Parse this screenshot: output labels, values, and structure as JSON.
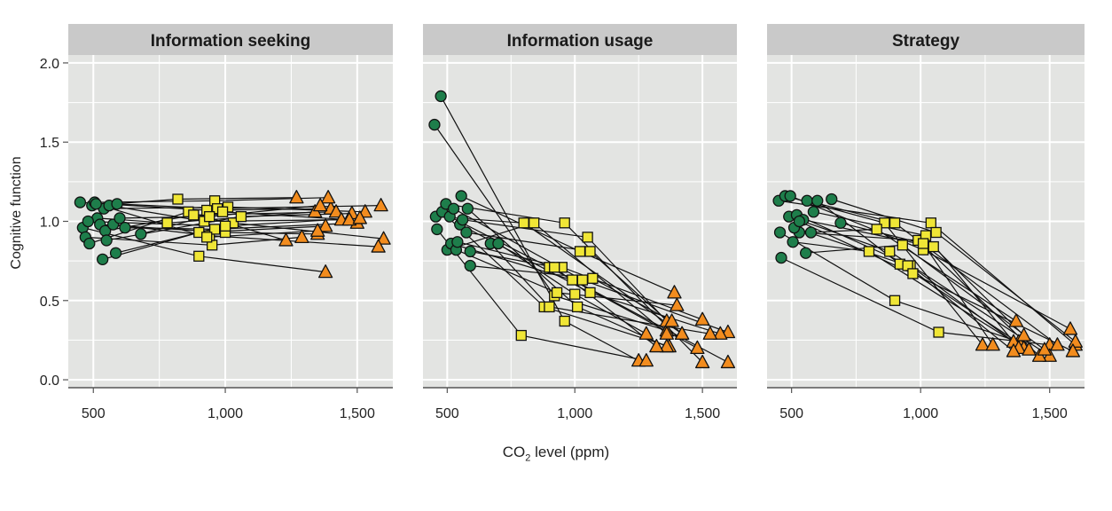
{
  "chart_data": {
    "type": "scatter",
    "ylabel": "Cognitive function",
    "xlabel_main": "CO",
    "xlabel_sub": "2",
    "xlabel_rest": " level (ppm)",
    "xlim": [
      405,
      1635
    ],
    "ylim": [
      -0.05,
      2.05
    ],
    "xticks": [
      500,
      1000,
      1500
    ],
    "xtick_labels": [
      "500",
      "1,000",
      "1,500"
    ],
    "yticks": [
      0.0,
      0.5,
      1.0,
      1.5,
      2.0
    ],
    "ytick_labels": [
      "0.0",
      "0.5",
      "1.0",
      "1.5",
      "2.0"
    ],
    "grid": true,
    "marker_colors": {
      "low": "#1e7e4b",
      "mid": "#f0e636",
      "high": "#f28c1e"
    },
    "panels": [
      {
        "title": "Information seeking",
        "participants": [
          [
            [
              450,
              1.12
            ],
            [
              930,
              1.07
            ],
            [
              1400,
              1.08
            ]
          ],
          [
            [
              460,
              0.96
            ],
            [
              900,
              0.78
            ],
            [
              1380,
              0.68
            ]
          ],
          [
            [
              470,
              0.9
            ],
            [
              950,
              0.85
            ],
            [
              1290,
              0.9
            ]
          ],
          [
            [
              485,
              0.86
            ],
            [
              860,
              1.06
            ],
            [
              1230,
              0.88
            ]
          ],
          [
            [
              495,
              1.1
            ],
            [
              820,
              1.14
            ],
            [
              1270,
              1.15
            ]
          ],
          [
            [
              505,
              1.12
            ],
            [
              960,
              1.13
            ],
            [
              1390,
              1.15
            ]
          ],
          [
            [
              515,
              1.02
            ],
            [
              780,
              0.99
            ],
            [
              1340,
              1.06
            ]
          ],
          [
            [
              525,
              0.98
            ],
            [
              1000,
              0.93
            ],
            [
              1350,
              0.92
            ]
          ],
          [
            [
              535,
              0.76
            ],
            [
              1030,
              0.99
            ],
            [
              1600,
              0.89
            ]
          ],
          [
            [
              540,
              1.08
            ],
            [
              1010,
              1.09
            ],
            [
              1530,
              1.06
            ]
          ],
          [
            [
              545,
              0.94
            ],
            [
              880,
              1.04
            ],
            [
              1420,
              1.06
            ]
          ],
          [
            [
              550,
              0.88
            ],
            [
              1060,
              1.03
            ],
            [
              1480,
              1.05
            ]
          ],
          [
            [
              560,
              1.1
            ],
            [
              920,
              1.0
            ],
            [
              1440,
              1.01
            ]
          ],
          [
            [
              575,
              0.98
            ],
            [
              940,
              0.91
            ],
            [
              1580,
              0.84
            ]
          ],
          [
            [
              585,
              0.8
            ],
            [
              900,
              0.93
            ],
            [
              1380,
              0.97
            ]
          ],
          [
            [
              590,
              1.11
            ],
            [
              970,
              1.08
            ],
            [
              1590,
              1.1
            ]
          ],
          [
            [
              600,
              1.02
            ],
            [
              940,
              1.03
            ],
            [
              1360,
              1.1
            ]
          ],
          [
            [
              620,
              0.96
            ],
            [
              960,
              0.95
            ],
            [
              1500,
              0.99
            ]
          ],
          [
            [
              680,
              0.92
            ],
            [
              990,
              1.06
            ],
            [
              1470,
              1.01
            ]
          ],
          [
            [
              510,
              1.11
            ],
            [
              930,
              0.9
            ],
            [
              1350,
              0.94
            ]
          ],
          [
            [
              480,
              1.0
            ],
            [
              1000,
              0.97
            ],
            [
              1510,
              1.02
            ]
          ]
        ]
      },
      {
        "title": "Information usage",
        "participants": [
          [
            [
              450,
              1.61
            ],
            [
              920,
              0.53
            ],
            [
              1360,
              0.31
            ]
          ],
          [
            [
              475,
              1.79
            ],
            [
              960,
              0.37
            ],
            [
              1250,
              0.12
            ]
          ],
          [
            [
              455,
              1.03
            ],
            [
              800,
              0.99
            ],
            [
              1420,
              0.29
            ]
          ],
          [
            [
              460,
              0.95
            ],
            [
              790,
              0.28
            ],
            [
              1280,
              0.12
            ]
          ],
          [
            [
              480,
              1.06
            ],
            [
              880,
              0.46
            ],
            [
              1370,
              0.21
            ]
          ],
          [
            [
              495,
              1.11
            ],
            [
              960,
              0.99
            ],
            [
              1500,
              0.11
            ]
          ],
          [
            [
              500,
              0.82
            ],
            [
              840,
              0.99
            ],
            [
              1360,
              0.29
            ]
          ],
          [
            [
              510,
              1.03
            ],
            [
              900,
              0.71
            ],
            [
              1600,
              0.11
            ]
          ],
          [
            [
              515,
              0.86
            ],
            [
              990,
              0.63
            ],
            [
              1480,
              0.2
            ]
          ],
          [
            [
              525,
              1.08
            ],
            [
              1030,
              0.63
            ],
            [
              1600,
              0.3
            ]
          ],
          [
            [
              535,
              0.82
            ],
            [
              930,
              0.55
            ],
            [
              1400,
              0.47
            ]
          ],
          [
            [
              540,
              0.87
            ],
            [
              950,
              0.71
            ],
            [
              1500,
              0.38
            ]
          ],
          [
            [
              550,
              0.98
            ],
            [
              1060,
              0.55
            ],
            [
              1570,
              0.29
            ]
          ],
          [
            [
              555,
              1.16
            ],
            [
              1020,
              0.81
            ],
            [
              1390,
              0.55
            ]
          ],
          [
            [
              560,
              1.01
            ],
            [
              1050,
              0.9
            ],
            [
              1360,
              0.37
            ]
          ],
          [
            [
              575,
              0.93
            ],
            [
              1060,
              0.81
            ],
            [
              1420,
              0.29
            ]
          ],
          [
            [
              580,
              1.08
            ],
            [
              1010,
              0.46
            ],
            [
              1360,
              0.21
            ]
          ],
          [
            [
              590,
              0.72
            ],
            [
              1070,
              0.64
            ],
            [
              1380,
              0.37
            ]
          ],
          [
            [
              670,
              0.86
            ],
            [
              900,
              0.46
            ],
            [
              1530,
              0.29
            ]
          ],
          [
            [
              700,
              0.86
            ],
            [
              1000,
              0.54
            ],
            [
              1280,
              0.29
            ]
          ],
          [
            [
              590,
              0.81
            ],
            [
              920,
              0.71
            ],
            [
              1320,
              0.21
            ]
          ]
        ]
      },
      {
        "title": "Strategy",
        "participants": [
          [
            [
              450,
              1.13
            ],
            [
              1040,
              0.99
            ],
            [
              1600,
              0.22
            ]
          ],
          [
            [
              455,
              0.93
            ],
            [
              900,
              0.5
            ],
            [
              1380,
              0.24
            ]
          ],
          [
            [
              460,
              0.77
            ],
            [
              1070,
              0.3
            ],
            [
              1500,
              0.22
            ]
          ],
          [
            [
              475,
              1.16
            ],
            [
              860,
              0.99
            ],
            [
              1240,
              0.22
            ]
          ],
          [
            [
              490,
              1.03
            ],
            [
              880,
              0.81
            ],
            [
              1500,
              0.15
            ]
          ],
          [
            [
              495,
              1.16
            ],
            [
              1010,
              0.82
            ],
            [
              1580,
              0.32
            ]
          ],
          [
            [
              505,
              0.87
            ],
            [
              800,
              0.81
            ],
            [
              1400,
              0.2
            ]
          ],
          [
            [
              520,
              1.04
            ],
            [
              960,
              0.72
            ],
            [
              1360,
              0.24
            ]
          ],
          [
            [
              530,
              0.93
            ],
            [
              990,
              0.88
            ],
            [
              1460,
              0.15
            ]
          ],
          [
            [
              545,
              1.01
            ],
            [
              1050,
              0.84
            ],
            [
              1400,
              0.28
            ]
          ],
          [
            [
              555,
              0.8
            ],
            [
              930,
              0.85
            ],
            [
              1480,
              0.19
            ]
          ],
          [
            [
              560,
              1.13
            ],
            [
              900,
              0.99
            ],
            [
              1530,
              0.22
            ]
          ],
          [
            [
              575,
              0.93
            ],
            [
              830,
              0.95
            ],
            [
              1370,
              0.37
            ]
          ],
          [
            [
              585,
              1.06
            ],
            [
              1020,
              0.91
            ],
            [
              1380,
              0.2
            ]
          ],
          [
            [
              600,
              1.13
            ],
            [
              920,
              0.73
            ],
            [
              1420,
              0.19
            ]
          ],
          [
            [
              655,
              1.14
            ],
            [
              1060,
              0.93
            ],
            [
              1600,
              0.24
            ]
          ],
          [
            [
              690,
              0.99
            ],
            [
              1010,
              0.86
            ],
            [
              1280,
              0.22
            ]
          ],
          [
            [
              510,
              0.96
            ],
            [
              950,
              0.72
            ],
            [
              1360,
              0.18
            ]
          ],
          [
            [
              530,
              1.0
            ],
            [
              970,
              0.67
            ],
            [
              1590,
              0.18
            ]
          ]
        ]
      }
    ]
  }
}
